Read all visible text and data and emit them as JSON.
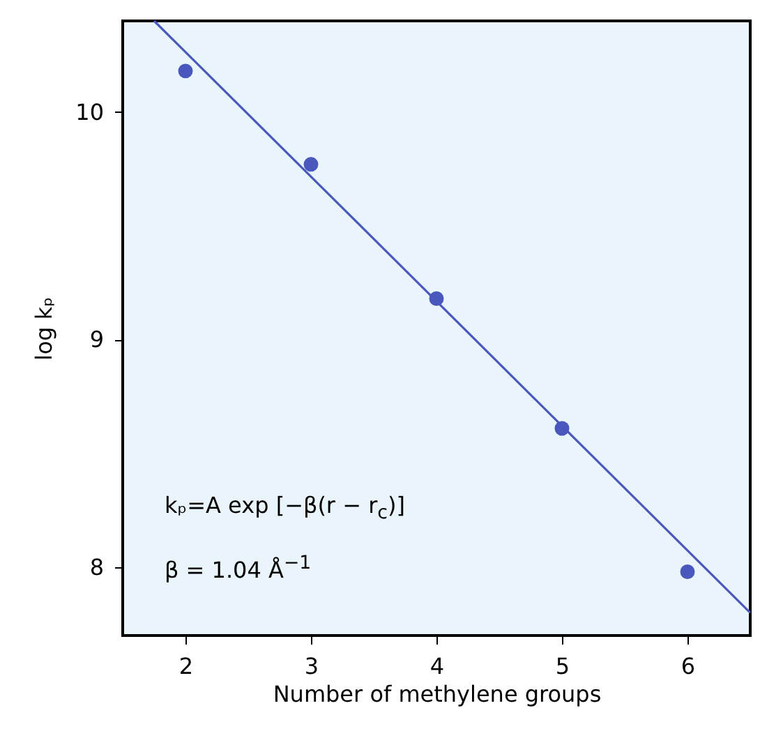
{
  "chart_data": {
    "type": "scatter",
    "xlabel": "Number of methylene groups",
    "ylabel": "log kₚ",
    "xlim": [
      1.5,
      6.5
    ],
    "ylim": [
      7.7,
      10.4
    ],
    "xticks": [
      2,
      3,
      4,
      5,
      6
    ],
    "yticks": [
      8,
      9,
      10
    ],
    "grid": false,
    "series": [
      {
        "marker": "circle",
        "color": "#4a58bd",
        "x": [
          2,
          3,
          4,
          5,
          6
        ],
        "values": [
          10.18,
          9.77,
          9.18,
          8.61,
          7.98
        ]
      },
      {
        "type": "line",
        "color": "#4a58bd",
        "x": [
          1.75,
          6.5
        ],
        "values": [
          10.4,
          7.8
        ]
      }
    ],
    "annotations": [
      "kₚ=A exp [−β(r − r$_{c}$)]",
      "β = 1.04 Å$^{−1}$"
    ]
  }
}
